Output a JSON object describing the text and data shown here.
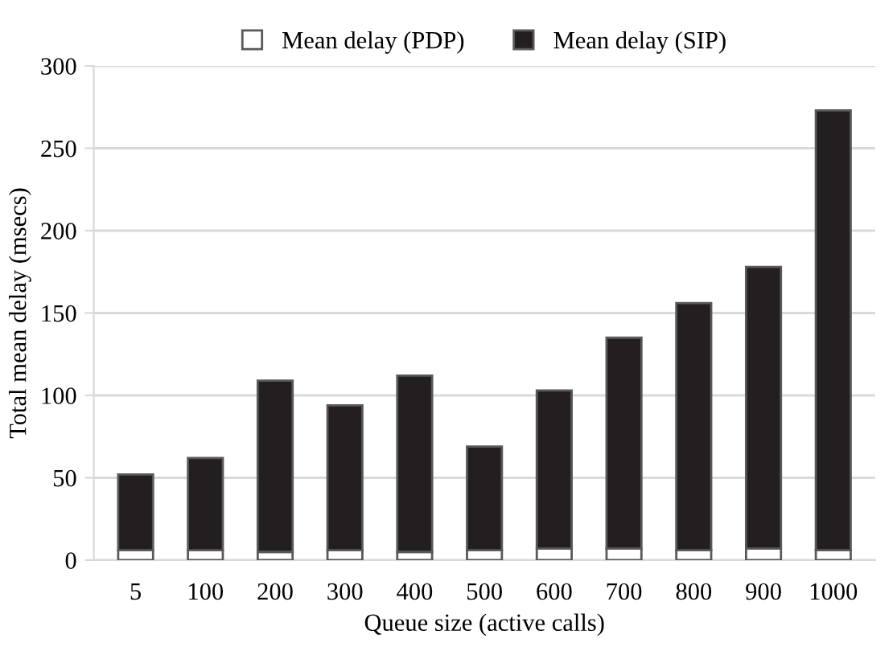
{
  "chart_data": {
    "type": "bar",
    "stacked": true,
    "xlabel": "Queue size (active calls)",
    "ylabel": "Total mean delay (msecs)",
    "categories": [
      "5",
      "100",
      "200",
      "300",
      "400",
      "500",
      "600",
      "700",
      "800",
      "900",
      "1000"
    ],
    "series": [
      {
        "name": "Mean delay (PDP)",
        "color": "#ffffff",
        "values": [
          6,
          6,
          5,
          6,
          5,
          6,
          7,
          7,
          6,
          7,
          6
        ]
      },
      {
        "name": "Mean delay (SIP)",
        "color": "#231f20",
        "values": [
          46,
          56,
          104,
          88,
          107,
          63,
          96,
          128,
          150,
          171,
          267
        ]
      }
    ],
    "ylim": [
      0,
      300
    ],
    "yticks": [
      0,
      50,
      100,
      150,
      200,
      250,
      300
    ],
    "grid": "y",
    "legend": "top"
  }
}
